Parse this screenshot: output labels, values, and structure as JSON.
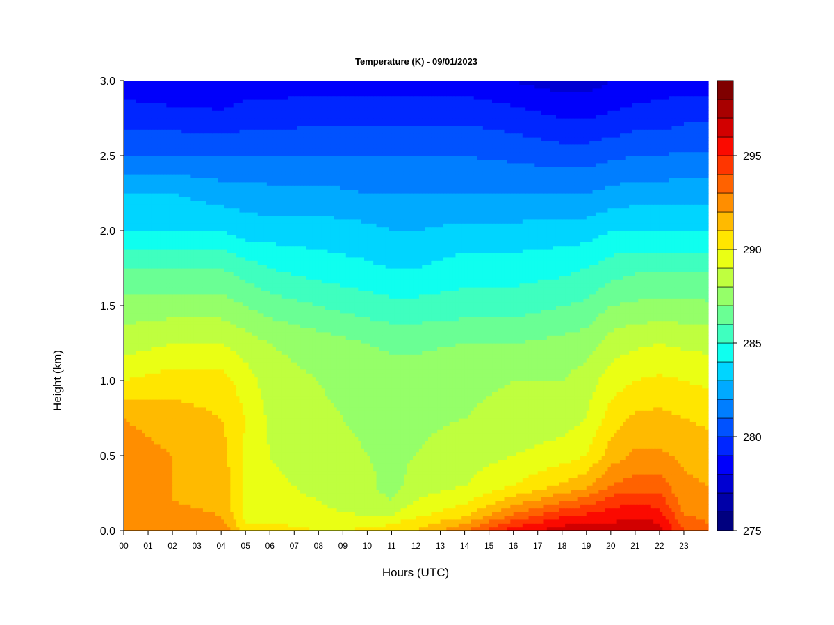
{
  "chart_data": {
    "type": "heatmap",
    "title": "Temperature (K) - 09/01/2023",
    "xlabel": "Hours (UTC)",
    "ylabel": "Height (km)",
    "x_ticks": [
      "00",
      "01",
      "02",
      "03",
      "04",
      "05",
      "06",
      "07",
      "08",
      "09",
      "10",
      "11",
      "12",
      "13",
      "14",
      "15",
      "16",
      "17",
      "18",
      "19",
      "20",
      "21",
      "22",
      "23"
    ],
    "y_ticks": [
      "0.0",
      "0.5",
      "1.0",
      "1.5",
      "2.0",
      "2.5",
      "3.0"
    ],
    "xlim": [
      0,
      24
    ],
    "ylim": [
      0,
      3.0
    ],
    "colorbar": {
      "min": 275,
      "max": 299,
      "step": 1,
      "ticks": [
        "275",
        "280",
        "285",
        "290",
        "295"
      ],
      "colors": [
        "#00007f",
        "#0000a8",
        "#0000d2",
        "#0000fb",
        "#0026ff",
        "#0052ff",
        "#007eff",
        "#00aaff",
        "#00d5ff",
        "#0fffef",
        "#3fffbf",
        "#6aff94",
        "#95ff69",
        "#bfff3f",
        "#eaff14",
        "#ffe600",
        "#ffba00",
        "#ff8e00",
        "#ff6200",
        "#ff3600",
        "#fb0a00",
        "#d20000",
        "#a80000",
        "#7f0000"
      ]
    },
    "temperature_profile": {
      "heights_km": [
        0.0,
        0.05,
        0.1,
        0.2,
        0.3,
        0.5,
        0.75,
        1.0,
        1.25,
        1.5,
        1.75,
        2.0,
        2.25,
        2.5,
        2.75,
        3.0
      ],
      "hours": [
        0,
        2,
        4,
        5,
        6,
        8,
        10,
        11,
        12,
        14,
        16,
        18,
        19,
        20,
        21,
        22,
        23,
        24
      ],
      "values_K": [
        [
          293.0,
          292.6,
          292.0,
          292.0,
          292.0,
          292.5,
          292.0,
          290.0,
          288.5,
          287.5,
          286.0,
          284.0,
          283.0,
          281.0,
          279.5,
          278.5
        ],
        [
          293.0,
          292.7,
          292.3,
          292.0,
          292.0,
          292.0,
          291.5,
          290.5,
          289.0,
          287.5,
          286.0,
          284.0,
          283.0,
          281.0,
          279.5,
          278.0
        ],
        [
          293.0,
          292.5,
          292.0,
          291.7,
          291.7,
          291.5,
          291.0,
          290.5,
          289.0,
          287.5,
          286.0,
          284.0,
          282.5,
          281.0,
          279.3,
          278.0
        ],
        [
          290.5,
          290.0,
          289.8,
          289.7,
          289.6,
          289.8,
          290.0,
          289.5,
          288.5,
          287.0,
          285.5,
          283.5,
          282.5,
          281.0,
          279.5,
          278.5
        ],
        [
          290.5,
          290.0,
          289.6,
          289.3,
          289.2,
          289.0,
          288.8,
          288.5,
          288.0,
          286.5,
          285.0,
          283.5,
          282.3,
          281.0,
          279.5,
          278.5
        ],
        [
          290.0,
          289.7,
          289.2,
          289.0,
          288.8,
          288.5,
          288.2,
          288.0,
          287.5,
          286.0,
          284.5,
          283.5,
          282.3,
          281.0,
          279.8,
          278.5
        ],
        [
          290.2,
          289.5,
          289.0,
          288.5,
          288.3,
          288.0,
          287.8,
          287.5,
          287.0,
          285.5,
          284.2,
          283.3,
          282.0,
          281.0,
          279.8,
          278.5
        ],
        [
          290.5,
          290.0,
          289.0,
          288.0,
          287.5,
          287.8,
          287.8,
          287.5,
          286.8,
          285.3,
          284.0,
          283.0,
          282.0,
          281.0,
          279.8,
          278.5
        ],
        [
          291.0,
          290.5,
          289.8,
          289.0,
          288.5,
          288.0,
          287.8,
          287.5,
          286.8,
          285.3,
          284.0,
          283.0,
          282.0,
          281.0,
          279.8,
          278.5
        ],
        [
          293.0,
          292.0,
          290.8,
          289.8,
          289.0,
          288.5,
          288.0,
          287.8,
          287.0,
          285.5,
          284.5,
          283.3,
          282.0,
          281.0,
          279.8,
          278.5
        ],
        [
          295.5,
          294.5,
          293.2,
          291.5,
          290.0,
          289.0,
          288.3,
          288.0,
          287.0,
          285.5,
          284.5,
          283.3,
          282.0,
          280.8,
          279.5,
          278.0
        ],
        [
          296.5,
          295.8,
          294.8,
          292.8,
          291.2,
          289.5,
          288.5,
          288.0,
          287.3,
          286.0,
          284.7,
          283.5,
          282.0,
          280.5,
          279.0,
          277.5
        ],
        [
          296.5,
          296.0,
          295.2,
          293.5,
          291.8,
          290.0,
          289.0,
          288.5,
          287.5,
          286.2,
          285.0,
          283.5,
          282.0,
          280.5,
          279.0,
          277.5
        ],
        [
          296.5,
          296.0,
          295.5,
          294.5,
          293.0,
          291.5,
          290.5,
          289.5,
          288.5,
          287.0,
          285.5,
          284.0,
          282.3,
          280.8,
          279.2,
          278.0
        ],
        [
          297.0,
          296.5,
          295.8,
          294.8,
          293.5,
          292.2,
          291.2,
          290.0,
          288.8,
          287.2,
          285.8,
          284.0,
          282.5,
          281.0,
          279.5,
          278.2
        ],
        [
          296.5,
          296.0,
          295.5,
          294.5,
          293.5,
          292.2,
          291.3,
          290.2,
          289.0,
          287.3,
          285.8,
          284.0,
          282.5,
          281.0,
          279.5,
          278.5
        ],
        [
          294.0,
          293.5,
          293.0,
          292.5,
          292.2,
          291.8,
          291.0,
          290.0,
          288.8,
          287.3,
          285.8,
          284.0,
          282.5,
          281.2,
          279.8,
          278.5
        ],
        [
          293.5,
          293.0,
          292.8,
          292.3,
          292.0,
          291.5,
          290.8,
          289.8,
          288.7,
          287.2,
          285.8,
          284.0,
          282.5,
          281.2,
          279.8,
          278.5
        ]
      ]
    }
  }
}
